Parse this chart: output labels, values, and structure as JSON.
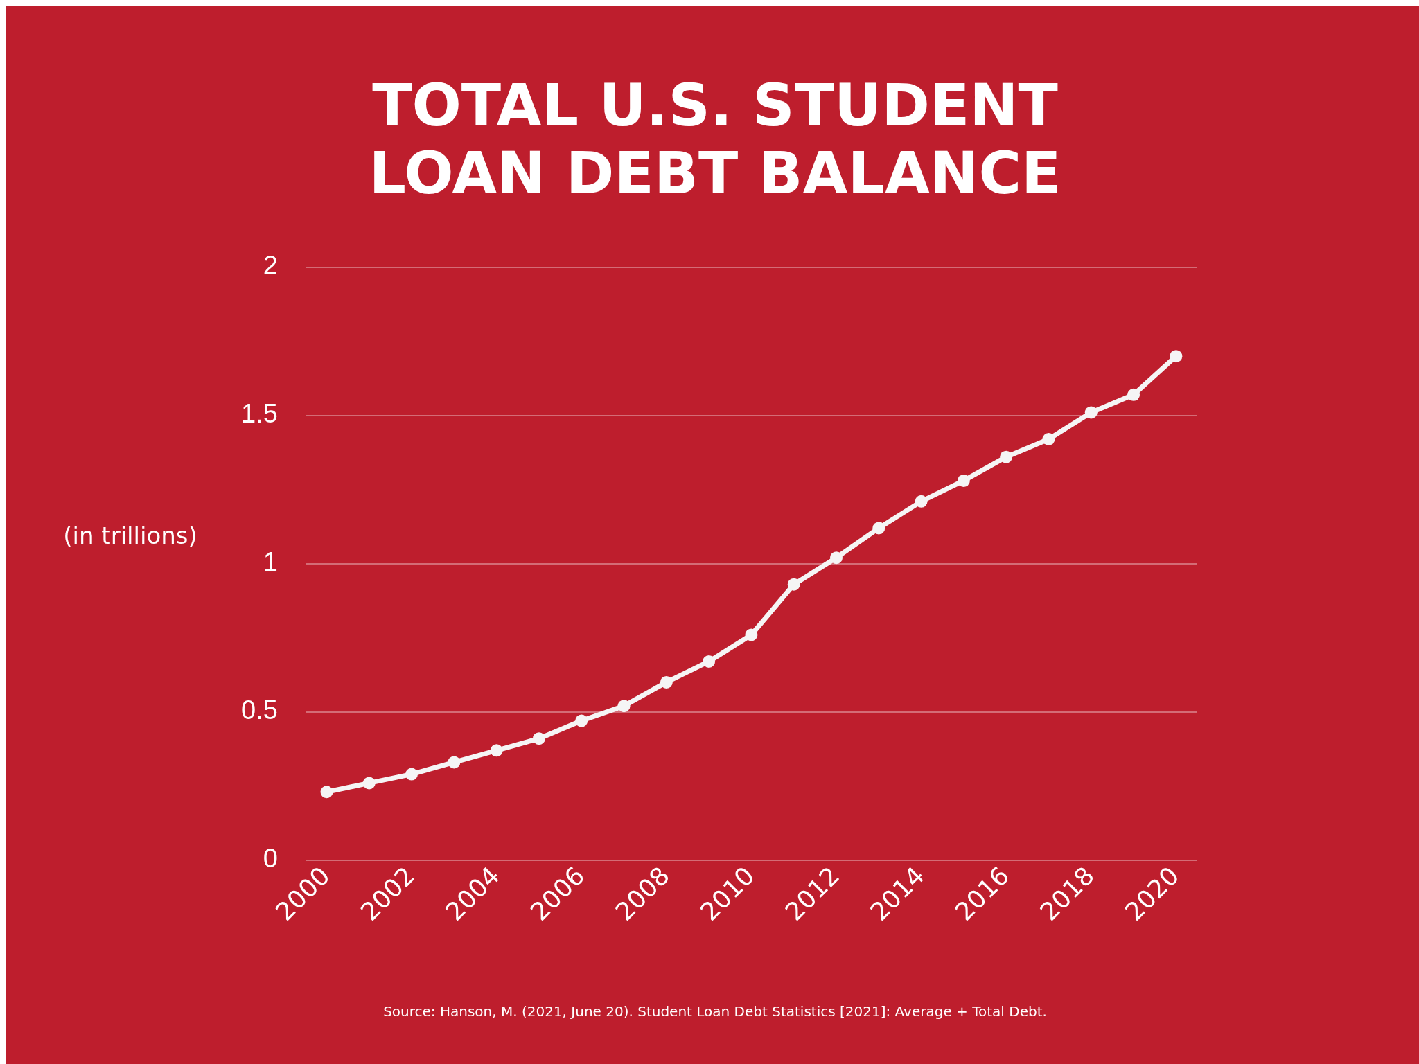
{
  "chart_data": {
    "type": "line",
    "title": "TOTAL U.S. STUDENT\nLOAN DEBT BALANCE",
    "ylabel": "(in trillions)",
    "x": [
      2000,
      2001,
      2002,
      2003,
      2004,
      2005,
      2006,
      2007,
      2008,
      2009,
      2010,
      2011,
      2012,
      2013,
      2014,
      2015,
      2016,
      2017,
      2018,
      2019,
      2020
    ],
    "series": [
      {
        "color": "#f5f5f5",
        "values": [
          0.23,
          0.26,
          0.29,
          0.33,
          0.37,
          0.41,
          0.47,
          0.52,
          0.6,
          0.67,
          0.76,
          0.93,
          1.02,
          1.12,
          1.21,
          1.28,
          1.36,
          1.42,
          1.51,
          1.57,
          1.7
        ]
      }
    ],
    "xlim": [
      1999.5,
      2020.5
    ],
    "xticks": [
      2000,
      2002,
      2004,
      2006,
      2008,
      2010,
      2012,
      2014,
      2016,
      2018,
      2020
    ],
    "ylim": [
      0,
      2
    ],
    "yticks": [
      0,
      0.5,
      1,
      1.5,
      2
    ],
    "grid": "y",
    "legend": false,
    "marker": "circle",
    "line_style": "solid",
    "annotations": [
      "Source: Hanson, M. (2021, June 20). Student Loan Debt Statistics [2021]: Average + Total Debt."
    ]
  }
}
